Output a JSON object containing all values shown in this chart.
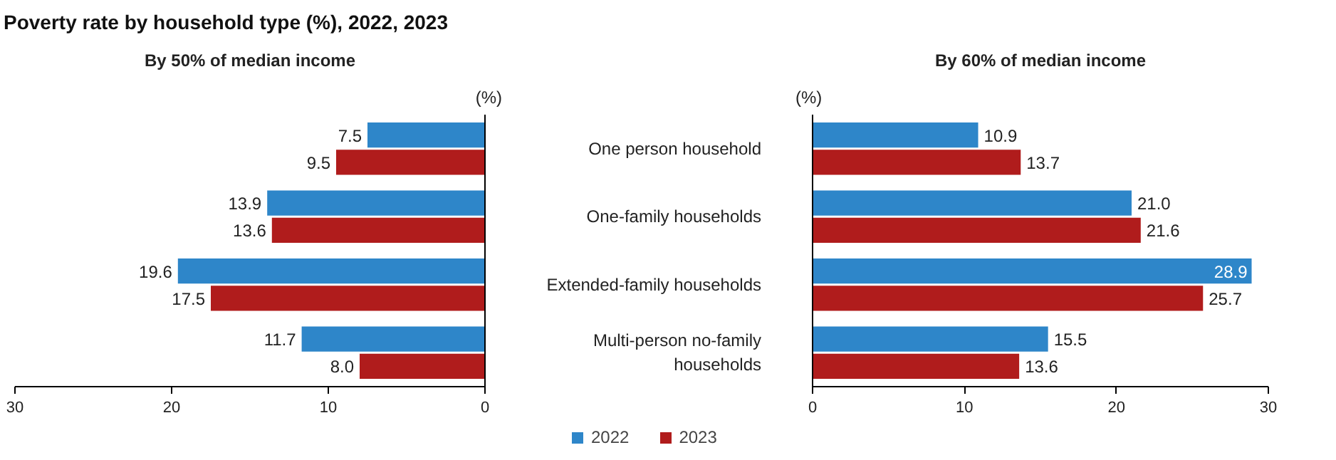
{
  "chart_data": [
    {
      "type": "bar",
      "orientation": "horizontal",
      "title": "Poverty rate by household type (%), 2022, 2023",
      "subtitle": "By 50% of median income",
      "xlabel": "(%)",
      "categories": [
        null,
        null,
        null,
        null
      ],
      "tick_labels": "x",
      "xlim": [
        30,
        0
      ],
      "xticks": [
        30,
        20,
        10,
        0
      ],
      "grid": false,
      "legend": "bottom",
      "series": [
        {
          "name": "2022",
          "color": "#2e86c9",
          "values": [
            7.5,
            13.9,
            19.6,
            11.7
          ],
          "value_labels": [
            "7.5",
            "13.9",
            "19.6",
            "11.7"
          ]
        },
        {
          "name": "2023",
          "color": "#b01c1c",
          "values": [
            9.5,
            13.6,
            17.5,
            8.0
          ],
          "value_labels": [
            "9.5",
            "13.6",
            "17.5",
            "8.0"
          ]
        }
      ]
    },
    {
      "type": "bar",
      "orientation": "horizontal",
      "subtitle": "By 60% of median income",
      "xlabel": "(%)",
      "categories": [
        "One person household",
        "One-family households",
        "Extended-family households",
        "Multi-person no-family\nhouseholds"
      ],
      "xlim": [
        0,
        30
      ],
      "xticks": [
        0,
        10,
        20,
        30
      ],
      "grid": false,
      "series": [
        {
          "name": "2022",
          "color": "#2e86c9",
          "values": [
            10.9,
            21.0,
            28.9,
            15.5
          ],
          "value_labels": [
            "10.9",
            "21.0",
            "28.9",
            "15.5"
          ]
        },
        {
          "name": "2023",
          "color": "#b01c1c",
          "values": [
            13.7,
            21.6,
            25.7,
            13.6
          ],
          "value_labels": [
            "13.7",
            "21.6",
            "25.7",
            "13.6"
          ]
        }
      ]
    }
  ]
}
